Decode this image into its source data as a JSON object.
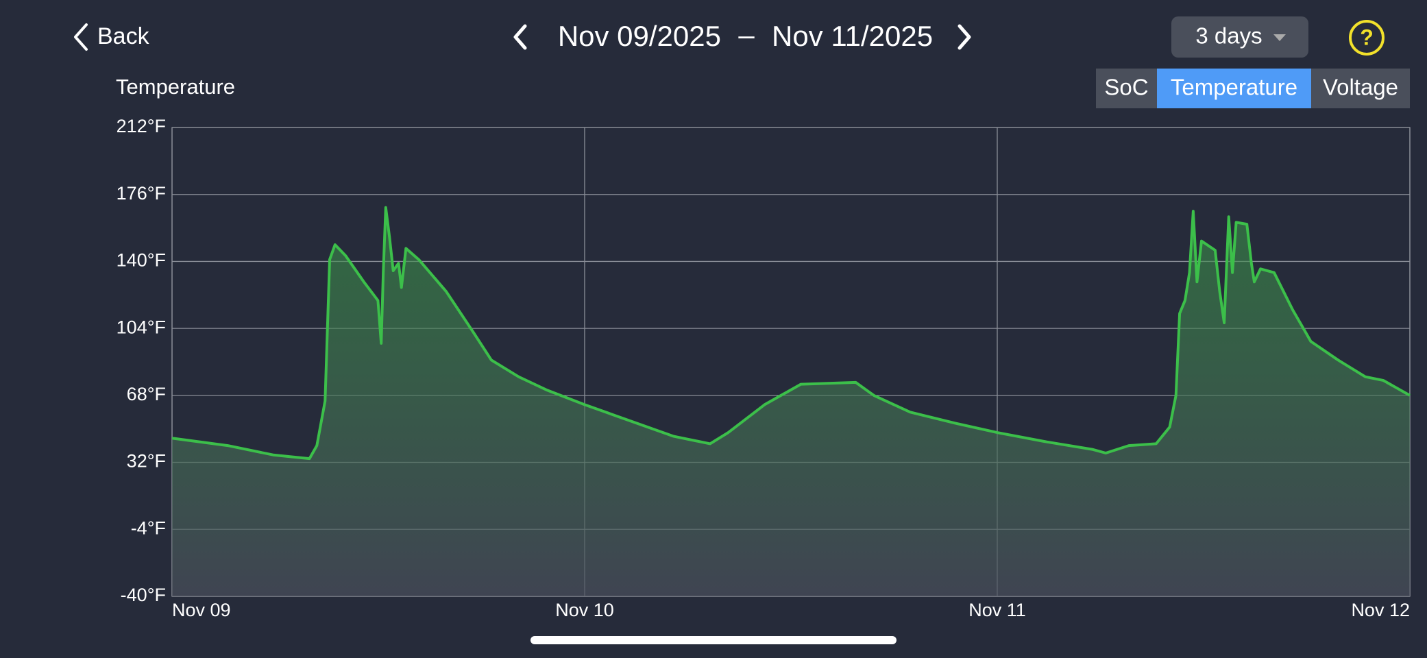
{
  "header": {
    "back": "Back",
    "start_date": "Nov 09/2025",
    "separator": "–",
    "end_date": "Nov 11/2025",
    "range": "3 days",
    "help": "?"
  },
  "controls": {
    "options": [
      "SoC",
      "Temperature",
      "Voltage"
    ],
    "selected_index": 1
  },
  "chart_data": {
    "type": "area",
    "title": "Temperature",
    "color": "#3cbf4a",
    "x": [
      9.0,
      9.135,
      9.245,
      9.333,
      9.351,
      9.371,
      9.382,
      9.395,
      9.421,
      9.465,
      9.499,
      9.507,
      9.512,
      9.518,
      9.527,
      9.536,
      9.549,
      9.556,
      9.567,
      9.598,
      9.664,
      9.73,
      9.774,
      9.84,
      9.907,
      10.0,
      10.127,
      10.216,
      10.304,
      10.348,
      10.436,
      10.524,
      10.657,
      10.701,
      10.789,
      10.899,
      11.0,
      11.12,
      11.23,
      11.263,
      11.319,
      11.385,
      11.418,
      11.433,
      11.442,
      11.455,
      11.466,
      11.475,
      11.484,
      11.495,
      11.528,
      11.539,
      11.55,
      11.561,
      11.57,
      11.579,
      11.605,
      11.616,
      11.623,
      11.638,
      11.671,
      11.716,
      11.76,
      11.826,
      11.892,
      11.936,
      12.0
    ],
    "values": [
      45,
      41,
      36,
      34,
      41,
      65,
      141,
      149,
      143,
      129,
      119,
      96,
      134,
      169,
      153,
      135,
      139,
      126,
      147,
      141,
      124,
      102,
      87,
      78,
      71,
      63,
      53,
      46,
      42,
      48,
      63,
      74,
      75,
      68,
      59,
      53,
      48,
      43,
      39,
      37,
      41,
      42,
      51,
      68,
      112,
      119,
      134,
      167,
      129,
      151,
      146,
      124,
      107,
      164,
      134,
      161,
      160,
      139,
      129,
      136,
      134,
      114,
      97,
      87,
      78,
      76,
      68
    ],
    "xlim": [
      9,
      12
    ],
    "xticks": [
      {
        "value": 9,
        "label": "Nov 09"
      },
      {
        "value": 10,
        "label": "Nov 10"
      },
      {
        "value": 11,
        "label": "Nov 11"
      },
      {
        "value": 12,
        "label": "Nov 12"
      }
    ],
    "ylim": [
      -40,
      212
    ],
    "yticks": [
      {
        "value": -40,
        "label": "-40°F"
      },
      {
        "value": -4,
        "label": "-4°F"
      },
      {
        "value": 32,
        "label": "32°F"
      },
      {
        "value": 68,
        "label": "68°F"
      },
      {
        "value": 104,
        "label": "104°F"
      },
      {
        "value": 140,
        "label": "140°F"
      },
      {
        "value": 176,
        "label": "176°F"
      },
      {
        "value": 212,
        "label": "212°F"
      }
    ],
    "grid": true
  }
}
